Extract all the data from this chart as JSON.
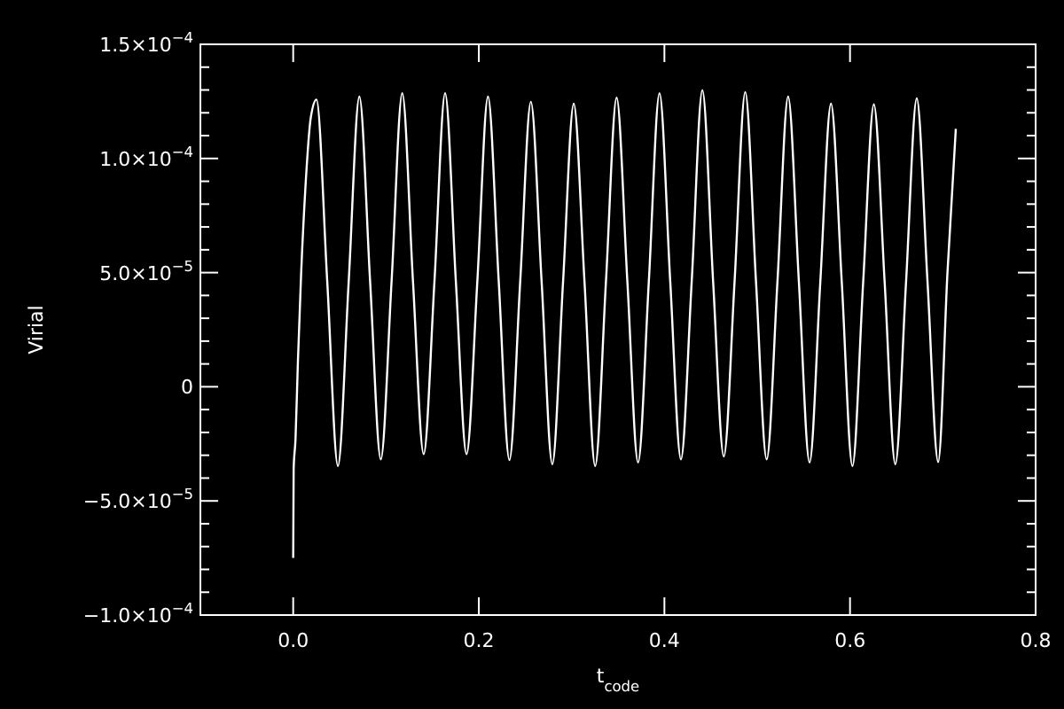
{
  "chart_data": {
    "type": "line",
    "xlabel": "t$_{code}$",
    "ylabel": "Virial",
    "xlim": [
      -0.1,
      0.8
    ],
    "xticks": [
      {
        "value": 0,
        "label": "0.0"
      },
      0.2,
      0.4,
      0.6,
      0.8
    ],
    "ylim": [
      -0.0001,
      0.00015
    ],
    "yticks": [
      {
        "value": -0.0001,
        "label": "−1.0×10$^{−4}$"
      },
      {
        "value": -9e-05,
        "label": null
      },
      {
        "value": -8e-05,
        "label": null
      },
      {
        "value": -7e-05,
        "label": null
      },
      {
        "value": -6e-05,
        "label": null
      },
      {
        "value": -5e-05,
        "label": "−5.0×10$^{−5}$"
      },
      {
        "value": -4e-05,
        "label": null
      },
      {
        "value": -3e-05,
        "label": null
      },
      {
        "value": -2e-05,
        "label": null
      },
      {
        "value": -1e-05,
        "label": null
      },
      {
        "value": 0,
        "label": "0"
      },
      {
        "value": 1e-05,
        "label": null
      },
      {
        "value": 2e-05,
        "label": null
      },
      {
        "value": 3e-05,
        "label": null
      },
      {
        "value": 4e-05,
        "label": null
      },
      {
        "value": 5e-05,
        "label": "5.0×10$^{−5}$"
      },
      {
        "value": 6e-05,
        "label": null
      },
      {
        "value": 7e-05,
        "label": null
      },
      {
        "value": 8e-05,
        "label": null
      },
      {
        "value": 9e-05,
        "label": null
      },
      {
        "value": 0.0001,
        "label": "1.0×10$^{−4}$"
      },
      {
        "value": 0.00011,
        "label": null
      },
      {
        "value": 0.00012,
        "label": null
      },
      {
        "value": 0.00013,
        "label": null
      },
      {
        "value": 0.00014,
        "label": null
      },
      {
        "value": 0.00015,
        "label": "1.5×10$^{−4}$"
      }
    ],
    "grid": false,
    "marker": "none",
    "line_style": "solid",
    "series": [
      {
        "color": "#ffffff",
        "x": [
          0,
          0.0005,
          0.0025,
          0.005,
          0.0085,
          0.013,
          0.019,
          0.0251,
          0.0367,
          0.0482,
          0.0598,
          0.0713,
          0.0829,
          0.0944,
          0.106,
          0.1175,
          0.1291,
          0.1406,
          0.1522,
          0.1637,
          0.1753,
          0.1868,
          0.1984,
          0.2099,
          0.2215,
          0.233,
          0.2446,
          0.2561,
          0.2677,
          0.2792,
          0.2908,
          0.3023,
          0.3139,
          0.3254,
          0.337,
          0.3485,
          0.3601,
          0.3716,
          0.3832,
          0.3947,
          0.4063,
          0.4178,
          0.4294,
          0.4409,
          0.4525,
          0.464,
          0.4756,
          0.4871,
          0.4987,
          0.5102,
          0.5218,
          0.5333,
          0.5449,
          0.5564,
          0.568,
          0.5795,
          0.5911,
          0.6026,
          0.6142,
          0.6257,
          0.6373,
          0.6488,
          0.6604,
          0.6719,
          0.6835,
          0.695,
          0.705,
          0.714
        ],
        "values": [
          -7.5e-05,
          -3.6e-05,
          -2.3e-05,
          1e-05,
          4.9e-05,
          8.6e-05,
          0.000118,
          0.0001258,
          4.6e-05,
          -3.47e-05,
          4.6e-05,
          0.0001271,
          4.6e-05,
          -3.18e-05,
          4.6e-05,
          0.0001286,
          4.6e-05,
          -2.95e-05,
          4.6e-05,
          0.0001286,
          4.6e-05,
          -2.95e-05,
          4.6e-05,
          0.0001271,
          4.6e-05,
          -3.21e-05,
          4.6e-05,
          0.0001248,
          4.6e-05,
          -3.39e-05,
          4.6e-05,
          0.000124,
          4.6e-05,
          -3.47e-05,
          4.6e-05,
          0.0001266,
          4.6e-05,
          -3.32e-05,
          4.6e-05,
          0.0001286,
          4.6e-05,
          -3.18e-05,
          4.6e-05,
          0.0001299,
          4.6e-05,
          -3.05e-05,
          4.6e-05,
          0.0001291,
          4.6e-05,
          -3.18e-05,
          4.6e-05,
          0.0001271,
          4.6e-05,
          -3.32e-05,
          4.6e-05,
          0.000124,
          4.6e-05,
          -3.47e-05,
          4.6e-05,
          0.0001237,
          4.6e-05,
          -3.39e-05,
          4.6e-05,
          0.0001263,
          4.6e-05,
          -3.3e-05,
          5e-05,
          0.000113
        ]
      }
    ]
  }
}
